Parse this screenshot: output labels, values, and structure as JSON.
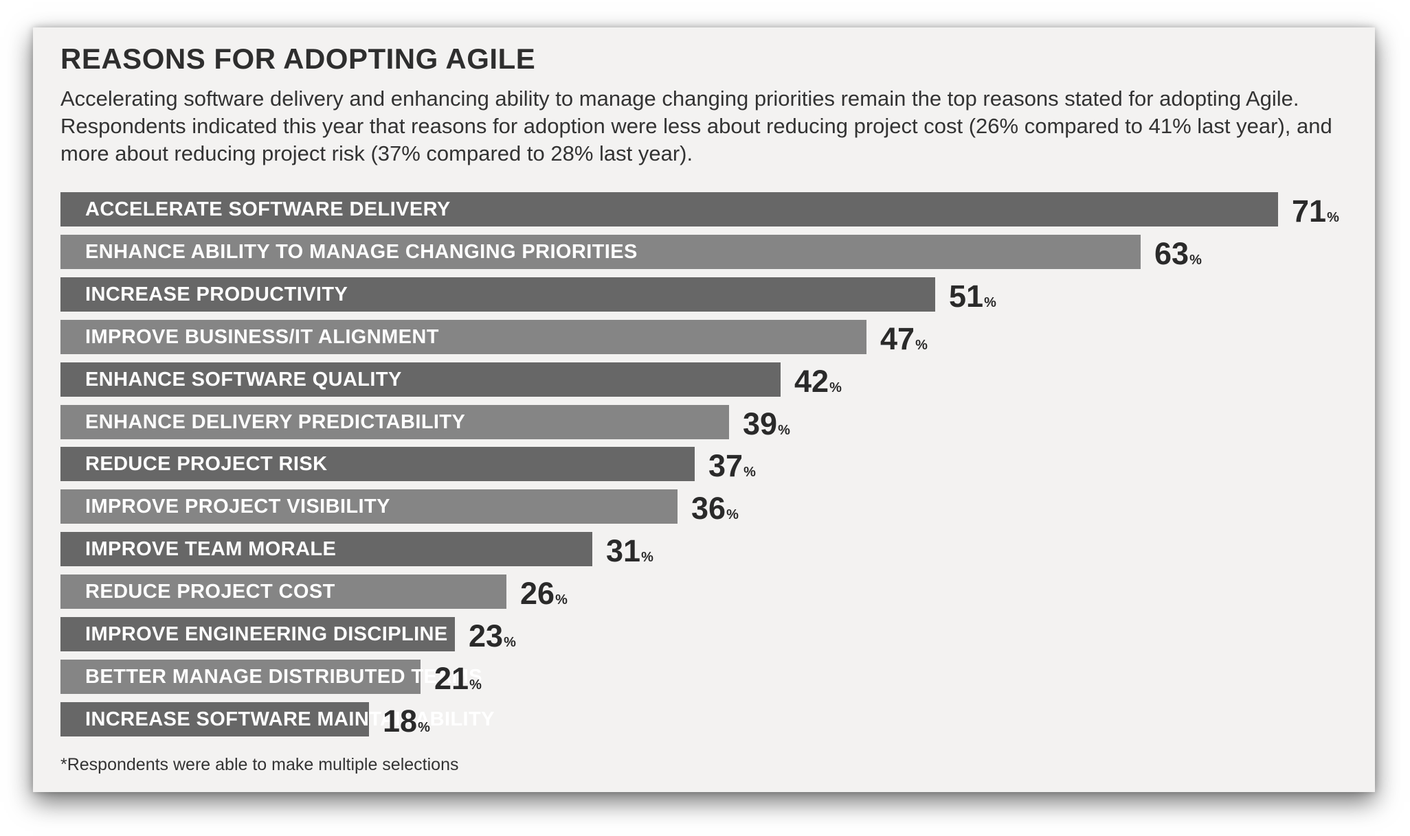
{
  "header": {
    "title": "REASONS FOR ADOPTING AGILE",
    "subtitle": "Accelerating software delivery and enhancing ability to manage changing priorities remain the top reasons stated for adopting Agile. Respondents indicated this year that reasons for adoption were less about reducing project cost (26% compared to 41% last year), and more about reducing project risk (37% compared to 28% last year)."
  },
  "footnote": "*Respondents were able to make multiple selections",
  "colors": {
    "bar_dark": "#676767",
    "bar_light": "#858585",
    "background": "#f3f2f1",
    "text": "#2e2e2e"
  },
  "chart_data": {
    "type": "bar",
    "orientation": "horizontal",
    "value_suffix": "%",
    "categories": [
      "ACCELERATE SOFTWARE DELIVERY",
      "ENHANCE ABILITY TO MANAGE CHANGING PRIORITIES",
      "INCREASE PRODUCTIVITY",
      "IMPROVE BUSINESS/IT ALIGNMENT",
      "ENHANCE SOFTWARE QUALITY",
      "ENHANCE DELIVERY PREDICTABILITY",
      "REDUCE PROJECT RISK",
      "IMPROVE PROJECT VISIBILITY",
      "IMPROVE TEAM MORALE",
      "REDUCE PROJECT COST",
      "IMPROVE ENGINEERING DISCIPLINE",
      "BETTER MANAGE DISTRIBUTED TEAMS",
      "INCREASE SOFTWARE MAINTAINABILITY"
    ],
    "values": [
      71,
      63,
      51,
      47,
      42,
      39,
      37,
      36,
      31,
      26,
      23,
      21,
      18
    ],
    "xlim": [
      0,
      71
    ],
    "grid": false,
    "legend": "none"
  }
}
